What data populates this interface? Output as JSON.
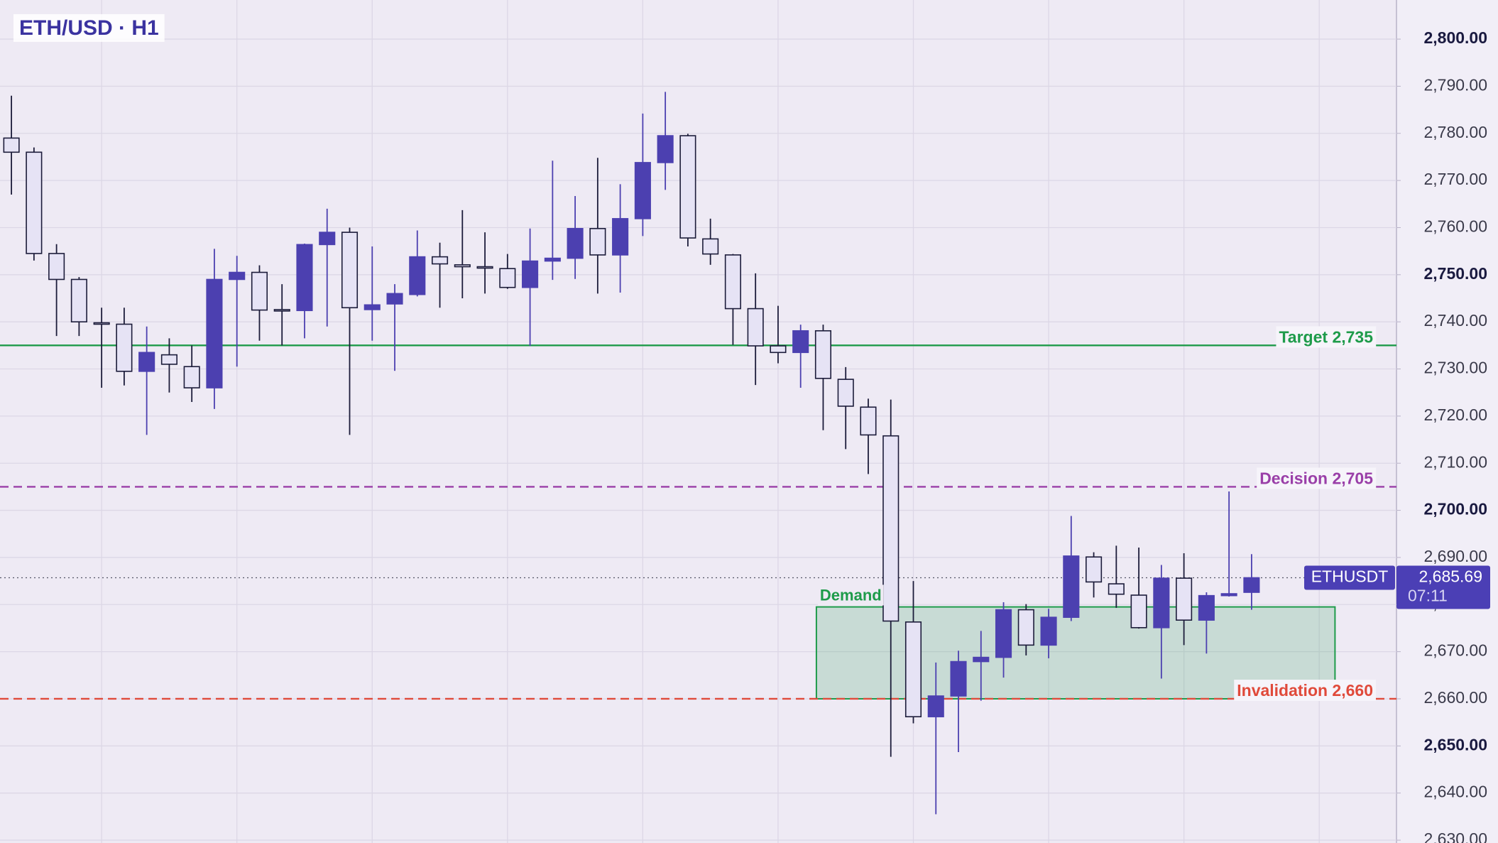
{
  "chart_data": {
    "type": "candlestick",
    "title": "ETH/USD · H1",
    "up_color": "#4c40b0",
    "down_color": "#e6e3f5",
    "open": [
      2779,
      2776,
      2754.5,
      2749,
      2739.8,
      2739.5,
      2729.5,
      2733,
      2730.5,
      2726,
      2749,
      2750.5,
      2742.6,
      2742.4,
      2756.4,
      2759,
      2742.6,
      2743.8,
      2745.8,
      2753.8,
      2752.1,
      2751.7,
      2751.3,
      2747.3,
      2752.9,
      2753.5,
      2759.8,
      2754.2,
      2761.9,
      2773.8,
      2779.5,
      2757.6,
      2754.2,
      2742.8,
      2734.9,
      2733.5,
      2738.1,
      2727.8,
      2721.9,
      2715.8,
      2676.3,
      2656.2,
      2660.6,
      2667.9,
      2668.8,
      2678.9,
      2671.4,
      2677.3,
      2690.1,
      2684.4,
      2682,
      2675.1,
      2685.6,
      2676.7,
      2681.9,
      2682.6
    ],
    "high": [
      2788,
      2777,
      2756.5,
      2749.5,
      2743,
      2743,
      2739,
      2736.5,
      2735,
      2755.5,
      2754,
      2752,
      2748,
      2756.6,
      2764,
      2760,
      2756,
      2748,
      2759.4,
      2756.8,
      2763.7,
      2759,
      2754.4,
      2759.8,
      2774.2,
      2766.7,
      2774.8,
      2769.2,
      2784.2,
      2788.8,
      2779.9,
      2761.9,
      2754.4,
      2750.3,
      2743.4,
      2739.4,
      2739.4,
      2730.4,
      2723.7,
      2723.5,
      2685,
      2667.7,
      2670.2,
      2674.4,
      2680.5,
      2680.1,
      2679.1,
      2698.8,
      2691.1,
      2692.5,
      2692.1,
      2688.4,
      2690.9,
      2682.6,
      2704,
      2690.7
    ],
    "low": [
      2767,
      2753,
      2737,
      2737,
      2726,
      2726.5,
      2716,
      2725,
      2723,
      2721.5,
      2730.5,
      2736,
      2735,
      2736.5,
      2739,
      2716,
      2736,
      2729.6,
      2745.4,
      2743,
      2745,
      2746,
      2747,
      2734.9,
      2748.9,
      2749.1,
      2746,
      2746.2,
      2758.2,
      2768,
      2756,
      2752.1,
      2735.1,
      2726.6,
      2731.2,
      2726,
      2717,
      2713,
      2707.7,
      2647.7,
      2654.8,
      2635.5,
      2648.7,
      2659.6,
      2664.5,
      2669.2,
      2668.6,
      2676.5,
      2681.5,
      2679.3,
      2674.9,
      2664.3,
      2671.4,
      2669.6,
      2681.7,
      2678.9
    ],
    "close": [
      2776,
      2754.5,
      2749,
      2740,
      2739.5,
      2729.5,
      2733.5,
      2731,
      2726,
      2749,
      2750.5,
      2742.5,
      2742.4,
      2756.4,
      2759,
      2743,
      2743.6,
      2746,
      2753.8,
      2752.3,
      2751.7,
      2751.6,
      2747.3,
      2752.9,
      2753.5,
      2759.8,
      2754.2,
      2761.9,
      2773.8,
      2779.5,
      2757.8,
      2754.4,
      2742.8,
      2734.9,
      2733.5,
      2738.1,
      2728,
      2722.1,
      2716,
      2676.5,
      2656.2,
      2660.6,
      2667.9,
      2668.8,
      2678.9,
      2671.4,
      2677.3,
      2690.3,
      2684.8,
      2682.2,
      2675.1,
      2685.6,
      2676.7,
      2681.9,
      2682.3,
      2685.69
    ],
    "ylim": [
      2629.4,
      2808.3
    ],
    "yticks": [
      {
        "value": 2630,
        "label": "2,630.00"
      },
      {
        "value": 2640,
        "label": "2,640.00"
      },
      {
        "value": 2650,
        "label": "2,650.00"
      },
      {
        "value": 2660,
        "label": "2,660.00"
      },
      {
        "value": 2670,
        "label": "2,670.00"
      },
      {
        "value": 2680,
        "label": "2,680.00"
      },
      {
        "value": 2690,
        "label": "2,690.00"
      },
      {
        "value": 2700,
        "label": "2,700.00"
      },
      {
        "value": 2710,
        "label": "2,710.00"
      },
      {
        "value": 2720,
        "label": "2,720.00"
      },
      {
        "value": 2730,
        "label": "2,730.00"
      },
      {
        "value": 2740,
        "label": "2,740.00"
      },
      {
        "value": 2750,
        "label": "2,750.00"
      },
      {
        "value": 2760,
        "label": "2,760.00"
      },
      {
        "value": 2770,
        "label": "2,770.00"
      },
      {
        "value": 2780,
        "label": "2,780.00"
      },
      {
        "value": 2790,
        "label": "2,790.00"
      },
      {
        "value": 2800,
        "label": "2,800.00"
      }
    ],
    "grid": true,
    "levels": [
      {
        "label": "Target 2,735",
        "value": 2735,
        "color": "#1e9b4a",
        "style": "solid"
      },
      {
        "label": "Decision 2,705",
        "value": 2705,
        "color": "#9a3fa8",
        "style": "dashed"
      },
      {
        "label": "Invalidation 2,660",
        "value": 2660,
        "color": "#e04a3a",
        "style": "dashed"
      }
    ],
    "zone": {
      "label": "Demand",
      "low": 2660,
      "high": 2679.5,
      "color": "#1e9b4a"
    },
    "last_price": {
      "name": "ETHUSDT",
      "value": 2685.69,
      "value_label": "2,685.69",
      "countdown": "07:11",
      "color": "#4b3fb5"
    }
  }
}
